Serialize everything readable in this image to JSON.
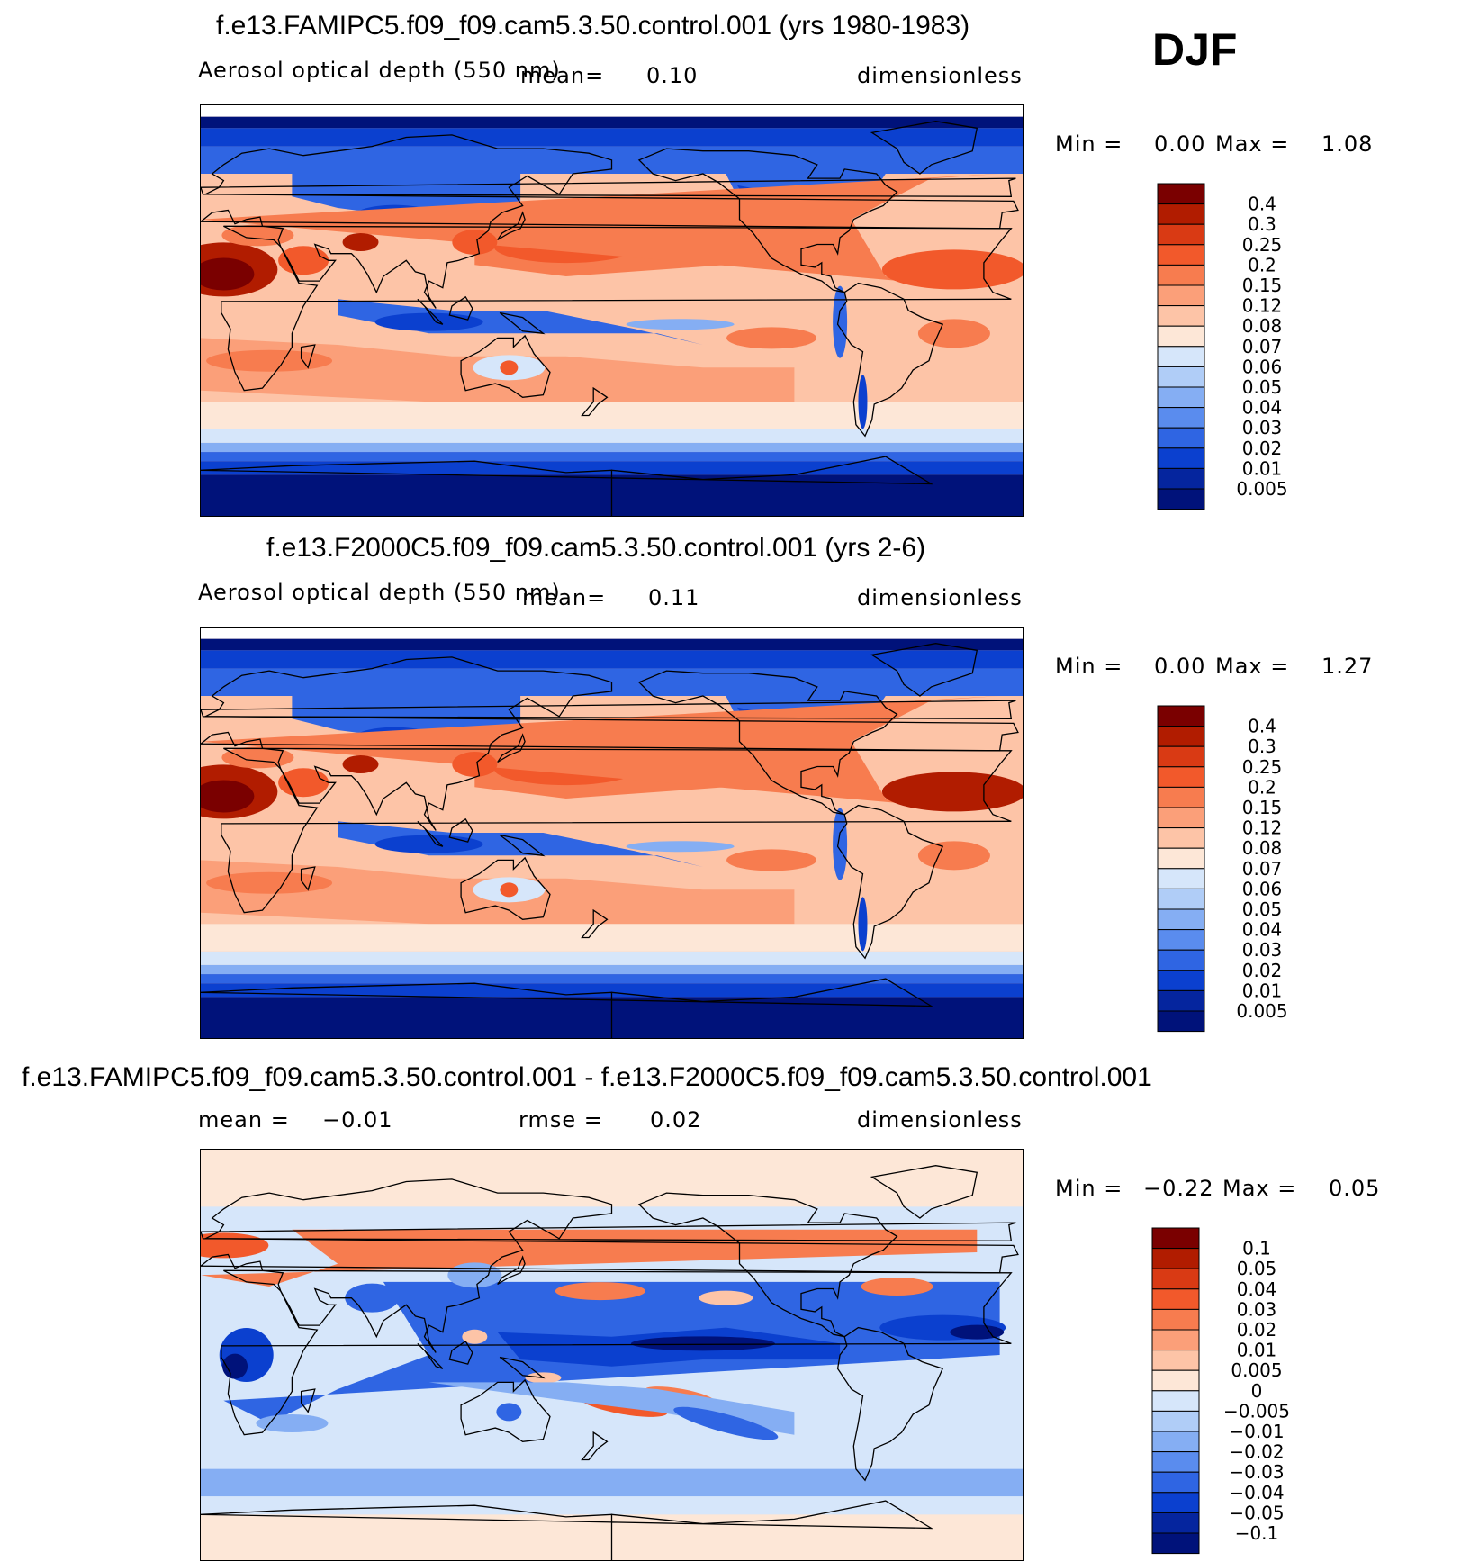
{
  "season": "DJF",
  "panels": [
    {
      "id": "top",
      "title": "f.e13.FAMIPC5.f09_f09.cam5.3.50.control.001 (yrs 1980-1983)",
      "variable": "Aerosol optical depth (550 nm)",
      "mean_label": "mean=",
      "mean_value": "0.10",
      "units": "dimensionless",
      "min_label": "Min =",
      "min_value": "0.00",
      "max_label": "Max =",
      "max_value": "1.08",
      "colorbar": {
        "labels": [
          "0.4",
          "0.3",
          "0.25",
          "0.2",
          "0.15",
          "0.12",
          "0.08",
          "0.07",
          "0.06",
          "0.05",
          "0.04",
          "0.03",
          "0.02",
          "0.01",
          "0.005"
        ],
        "colors": [
          "#7a0000",
          "#b11c00",
          "#d93a14",
          "#f2592b",
          "#f77c4f",
          "#fb9f79",
          "#fdc4a7",
          "#fde7d7",
          "#d6e6fa",
          "#b0cdf7",
          "#85aef3",
          "#5a8cee",
          "#2f65e3",
          "#0b40cf",
          "#05259e",
          "#00127a"
        ]
      },
      "field": "clean"
    },
    {
      "id": "middle",
      "title": "f.e13.F2000C5.f09_f09.cam5.3.50.control.001 (yrs 2-6)",
      "variable": "Aerosol optical depth (550 nm)",
      "mean_label": "mean=",
      "mean_value": "0.11",
      "units": "dimensionless",
      "min_label": "Min =",
      "min_value": "0.00",
      "max_label": "Max =",
      "max_value": "1.27",
      "colorbar": {
        "labels": [
          "0.4",
          "0.3",
          "0.25",
          "0.2",
          "0.15",
          "0.12",
          "0.08",
          "0.07",
          "0.06",
          "0.05",
          "0.04",
          "0.03",
          "0.02",
          "0.01",
          "0.005"
        ],
        "colors": [
          "#7a0000",
          "#b11c00",
          "#d93a14",
          "#f2592b",
          "#f77c4f",
          "#fb9f79",
          "#fdc4a7",
          "#fde7d7",
          "#d6e6fa",
          "#b0cdf7",
          "#85aef3",
          "#5a8cee",
          "#2f65e3",
          "#0b40cf",
          "#05259e",
          "#00127a"
        ]
      },
      "field": "clean"
    },
    {
      "id": "bottom",
      "title": "f.e13.FAMIPC5.f09_f09.cam5.3.50.control.001 - f.e13.F2000C5.f09_f09.cam5.3.50.control.001",
      "mean_label": "mean =",
      "mean_value": "−0.01",
      "rmse_label": "rmse =",
      "rmse_value": "0.02",
      "units": "dimensionless",
      "min_label": "Min =",
      "min_value": "−0.22",
      "max_label": "Max =",
      "max_value": "0.05",
      "colorbar": {
        "labels": [
          "0.1",
          "0.05",
          "0.04",
          "0.03",
          "0.02",
          "0.01",
          "0.005",
          "0",
          "−0.005",
          "−0.01",
          "−0.02",
          "−0.03",
          "−0.04",
          "−0.05",
          "−0.1"
        ],
        "colors": [
          "#7a0000",
          "#b11c00",
          "#d93a14",
          "#f2592b",
          "#f77c4f",
          "#fb9f79",
          "#fdc4a7",
          "#fde7d7",
          "#d6e6fa",
          "#b0cdf7",
          "#85aef3",
          "#5a8cee",
          "#2f65e3",
          "#0b40cf",
          "#05259e",
          "#00127a"
        ]
      },
      "field": "diff"
    }
  ],
  "colors": {
    "deep_blue": "#00127a",
    "blue": "#0b40cf",
    "mid_blue": "#2f65e3",
    "light_blue": "#85aef3",
    "pale_blue": "#d6e6fa",
    "cream": "#fde7d7",
    "salmon": "#fdc4a7",
    "orange": "#f77c4f",
    "red_orange": "#f2592b",
    "red": "#b11c00",
    "dark_red": "#7a0000"
  }
}
